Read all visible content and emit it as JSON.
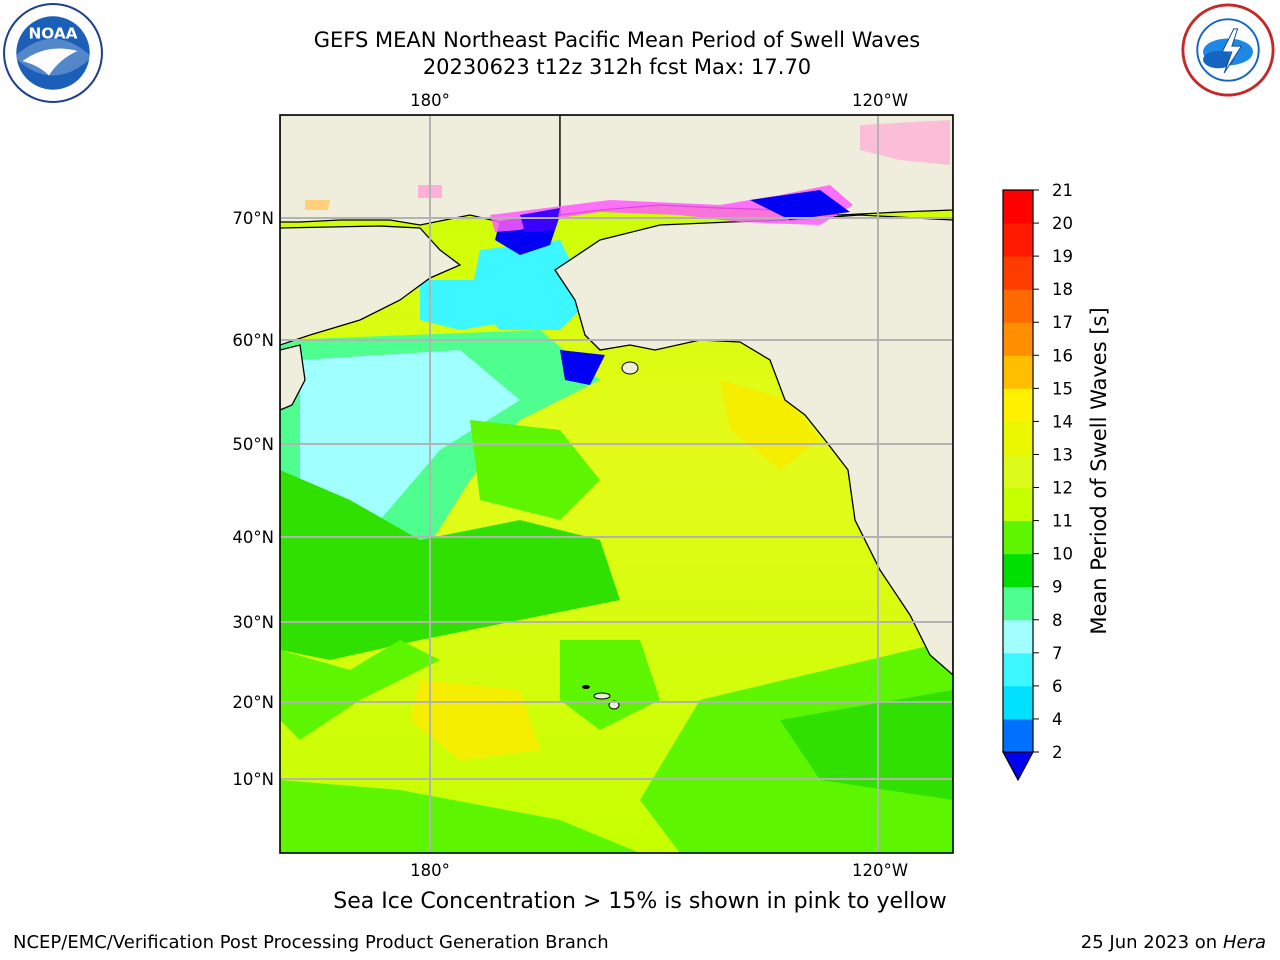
{
  "header": {
    "title_line1": "GEFS MEAN Northeast Pacific Mean Period of Swell Waves",
    "title_line2": "20230623 t12z 312h fcst   Max: 17.70"
  },
  "logos": {
    "left": "noaa-logo",
    "right": "nws-logo"
  },
  "map": {
    "lon_labels_top": [
      "180°",
      "120°W"
    ],
    "lon_labels_bottom": [
      "180°",
      "120°W"
    ],
    "lat_labels": [
      "70°N",
      "60°N",
      "50°N",
      "40°N",
      "30°N",
      "20°N",
      "10°N"
    ],
    "land_color": "#efeddc",
    "grid_color": "#b3b3b3"
  },
  "chart_data": {
    "type": "heatmap",
    "colorbar": {
      "label": "Mean Period of Swell Waves [s]",
      "ticks": [
        "2",
        "4",
        "6",
        "7",
        "8",
        "9",
        "10",
        "11",
        "12",
        "13",
        "14",
        "15",
        "16",
        "17",
        "18",
        "19",
        "20",
        "21"
      ],
      "colors": [
        "#0000f5",
        "#0070ff",
        "#00e0ff",
        "#3cf7ff",
        "#a0ffff",
        "#4eff90",
        "#00e000",
        "#5ef500",
        "#c6ff00",
        "#dcfb1a",
        "#eaf700",
        "#fff100",
        "#ffbf00",
        "#ff8f00",
        "#ff6a00",
        "#ff3c00",
        "#ff1a00",
        "#ff0000"
      ]
    }
  },
  "footer": {
    "note": "Sea Ice Concentration > 15% is shown in pink to yellow",
    "credit_left": "NCEP/EMC/Verification Post Processing Product Generation Branch",
    "credit_date": "25 Jun 2023 on",
    "credit_system": "Hera"
  }
}
